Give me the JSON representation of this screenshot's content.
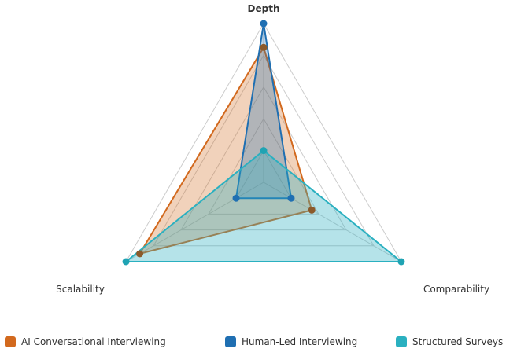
{
  "chart_data": {
    "type": "radar",
    "axes": [
      "Depth",
      "Comparability",
      "Scalability"
    ],
    "range": [
      0,
      10
    ],
    "grid_levels": 5,
    "series": [
      {
        "name": "AI Conversational Interviewing",
        "color": "#d2691e",
        "fill": "rgba(210,105,30,0.30)",
        "marker": "#8b5a2b",
        "values": [
          8.5,
          3.5,
          9
        ]
      },
      {
        "name": "Human-Led Interviewing",
        "color": "#1f6fb2",
        "fill": "rgba(31,111,178,0.30)",
        "marker": "#1f6fb2",
        "values": [
          10,
          2,
          2
        ]
      },
      {
        "name": "Structured Surveys",
        "color": "#2ab0c0",
        "fill": "rgba(42,176,192,0.35)",
        "marker": "#1fa3b3",
        "values": [
          2,
          10,
          10
        ]
      }
    ]
  }
}
